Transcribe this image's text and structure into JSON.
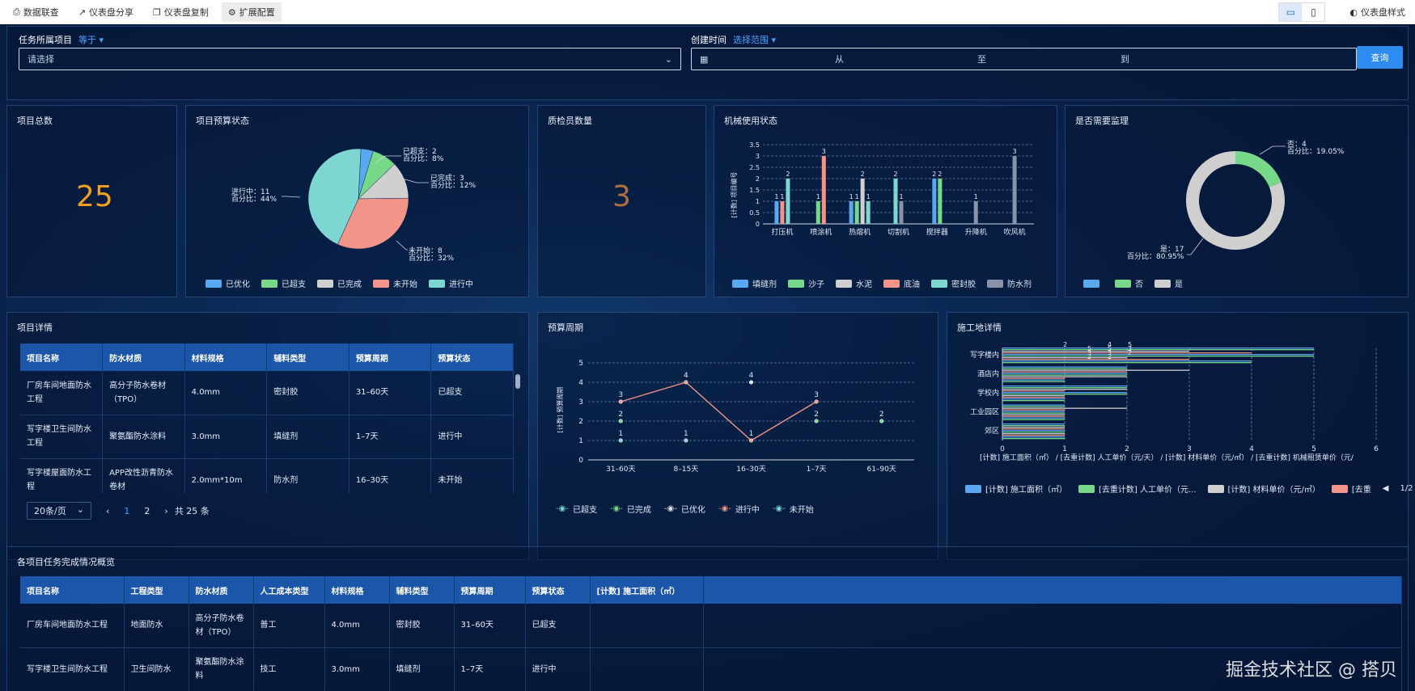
{
  "toolbar": {
    "items": [
      {
        "icon": "data-link-icon",
        "label": "数据联查"
      },
      {
        "icon": "share-icon",
        "label": "仪表盘分享"
      },
      {
        "icon": "copy-icon",
        "label": "仪表盘复制"
      },
      {
        "icon": "gear-icon",
        "label": "扩展配置"
      }
    ],
    "style_label": "仪表盘样式"
  },
  "filters": {
    "project": {
      "label": "任务所属项目",
      "operator": "等于",
      "placeholder": "请选择"
    },
    "created": {
      "label": "创建时间",
      "operator": "选择范围",
      "from": "从",
      "to": "至",
      "to2": "到"
    },
    "query_label": "查询"
  },
  "cards": {
    "total": {
      "title": "项目总数",
      "value": "25",
      "color": "#f0a020"
    },
    "budget_status": {
      "title": "项目预算状态"
    },
    "inspectors": {
      "title": "质检员数量",
      "value": "3",
      "color": "#b0703a"
    },
    "machine": {
      "title": "机械使用状态"
    },
    "supervision": {
      "title": "是否需要监理"
    },
    "project_detail": {
      "title": "项目详情"
    },
    "budget_cycle": {
      "title": "预算周期"
    },
    "site_detail": {
      "title": "施工地详情"
    },
    "overview": {
      "title": "各项目任务完成情况概览"
    }
  },
  "budget_pie": {
    "chart_data": {
      "type": "pie",
      "slices": [
        {
          "name": "已优化",
          "value": 1,
          "color": "#5aa9f0"
        },
        {
          "name": "已超支",
          "value": 2,
          "pct": "8%",
          "color": "#78d88a"
        },
        {
          "name": "已完成",
          "value": 3,
          "pct": "12%",
          "color": "#cfcfcf"
        },
        {
          "name": "未开始",
          "value": 8,
          "pct": "32%",
          "color": "#f29488"
        },
        {
          "name": "进行中",
          "value": 11,
          "pct": "44%",
          "color": "#7dd6d0"
        }
      ]
    },
    "labels": {
      "overspend": [
        "已超支：2",
        "百分比：8%"
      ],
      "done": [
        "已完成：3",
        "百分比：12%"
      ],
      "notstart": [
        "未开始：8",
        "百分比：32%"
      ],
      "ongoing": [
        "进行中：11",
        "百分比：44%"
      ]
    }
  },
  "machine_chart": {
    "chart_data": {
      "type": "bar",
      "ylabel": "[计数] 项目编号",
      "ylim": [
        0,
        3.5
      ],
      "yticks": [
        "0",
        "0.5",
        "1",
        "1.5",
        "2",
        "2.5",
        "3",
        "3.5"
      ],
      "categories": [
        "打压机",
        "喷涂机",
        "热熔机",
        "切割机",
        "搅拌器",
        "升降机",
        "吹风机"
      ],
      "series": [
        {
          "name": "填缝剂",
          "color": "#5aa9f0",
          "values": [
            1,
            0,
            1,
            0,
            2,
            0,
            0
          ]
        },
        {
          "name": "沙子",
          "color": "#78d88a",
          "values": [
            0,
            1,
            1,
            0,
            2,
            0,
            0
          ]
        },
        {
          "name": "水泥",
          "color": "#cfcfcf",
          "values": [
            0,
            0,
            2,
            0,
            0,
            0,
            0
          ]
        },
        {
          "name": "底油",
          "color": "#f29488",
          "values": [
            1,
            3,
            0,
            0,
            0,
            0,
            0
          ]
        },
        {
          "name": "密封胶",
          "color": "#7dd6d0",
          "values": [
            2,
            0,
            1,
            2,
            0,
            0,
            0
          ]
        },
        {
          "name": "防水剂",
          "color": "#8a93a8",
          "values": [
            0,
            0,
            0,
            1,
            0,
            1,
            3
          ]
        }
      ]
    },
    "extra_value_label": "1"
  },
  "supervision_donut": {
    "chart_data": {
      "type": "pie",
      "slices": [
        {
          "name": "",
          "value": 0,
          "color": "#5aa9f0"
        },
        {
          "name": "否",
          "value": 4,
          "pct": "19.05%",
          "color": "#78d88a"
        },
        {
          "name": "是",
          "value": 17,
          "pct": "80.95%",
          "color": "#cfcfcf"
        }
      ]
    },
    "labels": {
      "no": [
        "否：4",
        "百分比：19.05%"
      ],
      "yes": [
        "是：17",
        "百分比：80.95%"
      ]
    }
  },
  "project_table": {
    "headers": [
      "项目名称",
      "防水材质",
      "材料规格",
      "辅料类型",
      "预算周期",
      "预算状态"
    ],
    "rows": [
      [
        "厂房车间地面防水工程",
        "高分子防水卷材（TPO）",
        "4.0mm",
        "密封胶",
        "31–60天",
        "已超支"
      ],
      [
        "写字楼卫生间防水工程",
        "聚氨酯防水涂料",
        "3.0mm",
        "填缝剂",
        "1–7天",
        "进行中"
      ],
      [
        "写字楼屋面防水工程",
        "APP改性沥青防水卷材",
        "2.0mm*10m",
        "防水剂",
        "16–30天",
        "未开始"
      ]
    ],
    "pager": {
      "size": "20条/页",
      "page1": "1",
      "page2": "2",
      "total": "共 25 条"
    }
  },
  "cycle_chart": {
    "chart_data": {
      "type": "line",
      "ylabel": "[计数] 预算周期",
      "ylim": [
        0,
        5
      ],
      "yticks": [
        "0",
        "1",
        "2",
        "3",
        "4",
        "5"
      ],
      "categories": [
        "31–60天",
        "8–15天",
        "16–30天",
        "1–7天",
        "61–90天"
      ],
      "series": [
        {
          "name": "已超支",
          "color": "#7dd6d0",
          "values": [
            1,
            1,
            null,
            null,
            null
          ]
        },
        {
          "name": "已完成",
          "color": "#78d88a",
          "values": [
            2,
            null,
            null,
            2,
            2
          ]
        },
        {
          "name": "已优化",
          "color": "#e0e0e0",
          "values": [
            null,
            null,
            4,
            null,
            null
          ]
        },
        {
          "name": "进行中",
          "color": "#f29488",
          "values": [
            3,
            4,
            1,
            3,
            null
          ]
        },
        {
          "name": "未开始",
          "color": "#7dd6d0",
          "values": [
            null,
            null,
            null,
            null,
            null
          ]
        }
      ]
    }
  },
  "site_chart": {
    "chart_data": {
      "type": "bar",
      "orientation": "horizontal",
      "categories": [
        "写字楼内",
        "酒店内",
        "学校内",
        "工业园区",
        "郊区"
      ],
      "xticks": [
        "0",
        "1",
        "2",
        "3",
        "4",
        "5",
        "6"
      ],
      "xlim": [
        0,
        6
      ],
      "series": [
        {
          "name": "[计数] 施工面积（㎡）",
          "color": "#5aa9f0"
        },
        {
          "name": "[去重计数] 人工单价（元/天）",
          "color": "#78d88a"
        },
        {
          "name": "[计数] 材料单价（元/㎡）",
          "color": "#cfcfcf"
        },
        {
          "name": "[去重计数] 机械租赁单价（元/",
          "color": "#f29488"
        }
      ],
      "top_labels": [
        "2",
        "4",
        "5",
        "5",
        "5",
        "3",
        "3",
        "3",
        "2",
        "2",
        "2"
      ]
    },
    "axis_title": "[计数] 施工面积（㎡）  / [去重计数] 人工单价（元/天）  / [计数] 材料单价（元/㎡）  / [去重计数] 机械租赁单价（元/",
    "legend": [
      "[计数] 施工面积（㎡）",
      "[去重计数] 人工单价（元...",
      "[计数] 材料单价（元/㎡）",
      "[去重"
    ],
    "legend_page": "1/2"
  },
  "overview_table": {
    "headers": [
      "项目名称",
      "工程类型",
      "防水材质",
      "人工成本类型",
      "材料规格",
      "辅料类型",
      "预算周期",
      "预算状态",
      "[计数] 施工面积（㎡）"
    ],
    "rows": [
      [
        "厂房车间地面防水工程",
        "地面防水",
        "高分子防水卷材（TPO）",
        "普工",
        "4.0mm",
        "密封胶",
        "31–60天",
        "已超支",
        ""
      ],
      [
        "写字楼卫生间防水工程",
        "卫生间防水",
        "聚氨酯防水涂料",
        "技工",
        "3.0mm",
        "填缝剂",
        "1–7天",
        "进行中",
        ""
      ]
    ]
  },
  "watermark": "掘金技术社区 @ 搭贝"
}
